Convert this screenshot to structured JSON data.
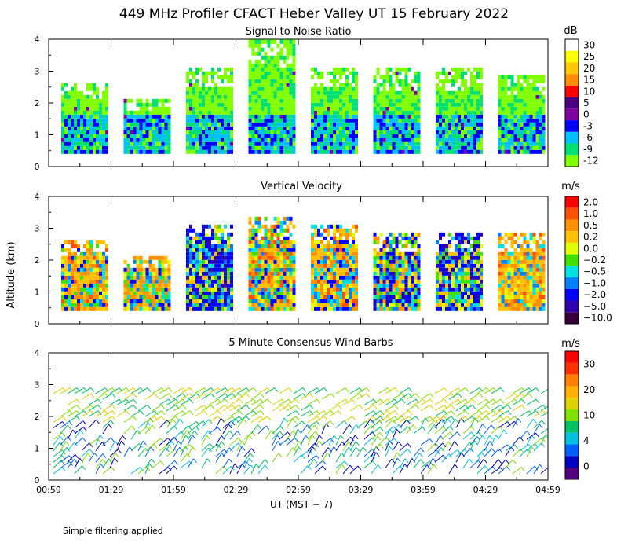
{
  "title": "449 MHz Profiler CFACT Heber Valley UT 15 February 2022",
  "footer_note": "Simple filtering applied",
  "chart_data": [
    {
      "type": "heatmap",
      "title": "Signal to Noise Ratio",
      "ylabel": "",
      "ylim": [
        0,
        4
      ],
      "yticks": [
        "0",
        "1",
        "2",
        "3",
        "4"
      ],
      "colorbar_unit": "dB",
      "colorbar_labels": [
        "30",
        "25",
        "20",
        "15",
        "10",
        "5",
        "0",
        "-3",
        "-6",
        "-9",
        "-12"
      ],
      "colorbar_colors": [
        "#ffffff",
        "#ffff00",
        "#ffc800",
        "#ff8c00",
        "#ff0000",
        "#4b0082",
        "#8000a0",
        "#0000ff",
        "#00bfff",
        "#00e070",
        "#80ff00"
      ],
      "coverage_km": [
        [
          0.4,
          2.6
        ],
        [
          0.4,
          2.1
        ],
        [
          0.4,
          3.1
        ],
        [
          0.4,
          4.0
        ],
        [
          0.4,
          3.1
        ],
        [
          0.4,
          3.0
        ],
        [
          0.4,
          3.0
        ],
        [
          0.4,
          2.8
        ]
      ]
    },
    {
      "type": "heatmap",
      "title": "Vertical Velocity",
      "ylabel": "Altitude (km)",
      "ylim": [
        0,
        4
      ],
      "yticks": [
        "0",
        "1",
        "2",
        "3",
        "4"
      ],
      "colorbar_unit": "m/s",
      "colorbar_labels": [
        "2.0",
        "1.0",
        "0.5",
        "0.2",
        "0.0",
        "−0.2",
        "−0.5",
        "−1.0",
        "−2.0",
        "−5.0",
        "−10.0"
      ],
      "colorbar_colors": [
        "#ff0000",
        "#ff5000",
        "#ff9000",
        "#ffc000",
        "#e0ff00",
        "#40e000",
        "#00e0e0",
        "#0080ff",
        "#0000ff",
        "#3000b0",
        "#3a003a"
      ],
      "coverage_km": [
        [
          0.4,
          2.6
        ],
        [
          0.4,
          2.1
        ],
        [
          0.4,
          3.1
        ],
        [
          0.4,
          3.3
        ],
        [
          0.4,
          3.1
        ],
        [
          0.4,
          2.8
        ],
        [
          0.4,
          2.8
        ],
        [
          0.4,
          2.8
        ]
      ]
    },
    {
      "type": "scatter",
      "title": "5 Minute Consensus Wind Barbs",
      "ylabel": "",
      "ylim": [
        0,
        4
      ],
      "yticks": [
        "0",
        "1",
        "2",
        "3",
        "4"
      ],
      "xlabel": "UT  (MST − 7)",
      "xticks": [
        "00:59",
        "01:29",
        "01:59",
        "02:29",
        "02:59",
        "03:29",
        "03:59",
        "04:29",
        "04:59"
      ],
      "colorbar_unit": "m/s",
      "colorbar_labels": [
        "30",
        "20",
        "10",
        "4",
        "0"
      ],
      "colorbar_colors": [
        "#ff0000",
        "#ff3000",
        "#ff8000",
        "#ffb000",
        "#e0d000",
        "#80e000",
        "#00c060",
        "#00c0e0",
        "#0060ff",
        "#0000c0",
        "#500080"
      ]
    }
  ]
}
